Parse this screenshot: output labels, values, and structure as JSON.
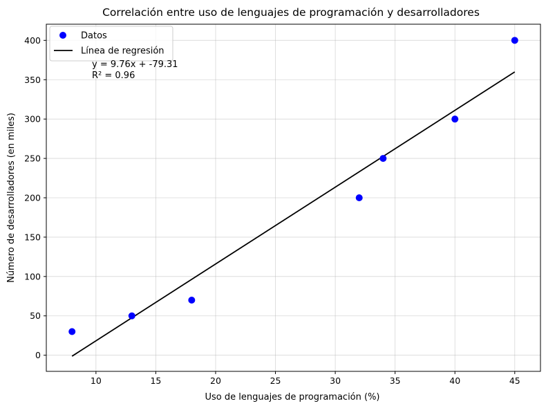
{
  "chart_data": {
    "type": "scatter",
    "title": "Correlación entre uso de lenguajes de programación y desarrolladores",
    "xlabel": "Uso de lenguajes de programación (%)",
    "ylabel": "Número de desarrolladores (en miles)",
    "xlim": [
      5.85,
      47.15
    ],
    "ylim": [
      -20.5,
      420.5
    ],
    "xticks": [
      10,
      15,
      20,
      25,
      30,
      35,
      40,
      45
    ],
    "yticks": [
      0,
      50,
      100,
      150,
      200,
      250,
      300,
      350,
      400
    ],
    "grid": true,
    "legend_position": "top-left",
    "series": [
      {
        "name": "Datos",
        "kind": "scatter",
        "color": "#0000ff",
        "x": [
          8,
          13,
          18,
          32,
          34,
          40,
          45
        ],
        "y": [
          30,
          50,
          70,
          200,
          250,
          300,
          400
        ]
      },
      {
        "name": "Línea de regresión",
        "kind": "line",
        "color": "#000000",
        "slope": 9.76,
        "intercept": -79.31,
        "x": [
          8,
          45
        ]
      }
    ],
    "annotation": {
      "line1": "y = 9.76x + -79.31",
      "line2": "R² = 0.96"
    }
  }
}
